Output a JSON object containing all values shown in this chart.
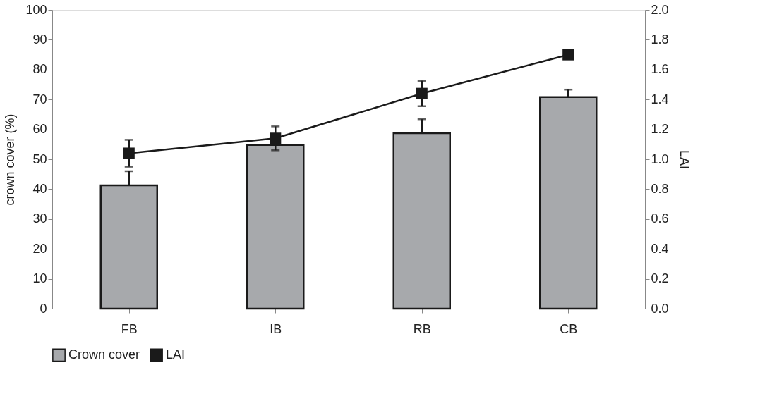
{
  "chart_data": {
    "type": "bar",
    "ylabel": "crown cover (%)",
    "y2label": "LAI",
    "categories": [
      "FB",
      "IB",
      "RB",
      "CB"
    ],
    "series": [
      {
        "name": "Crown cover",
        "color": "#a7a9ac",
        "values": [
          41.3,
          54.8,
          58.7,
          70.8
        ],
        "errors": [
          4.7,
          null,
          4.7,
          2.5
        ]
      },
      {
        "name": "LAI",
        "type": "line",
        "axis": "y2",
        "color": "#1a1a1a",
        "marker": "square",
        "values": [
          1.04,
          1.14,
          1.44,
          1.7
        ],
        "errors": [
          0.09,
          0.08,
          0.085,
          null
        ]
      }
    ],
    "ylim": [
      0,
      100
    ],
    "yticks": [
      0,
      10,
      20,
      30,
      40,
      50,
      60,
      70,
      80,
      90,
      100
    ],
    "y2lim": [
      0,
      2.0
    ],
    "y2ticks": [
      {
        "value": 0,
        "label": "0.0"
      },
      {
        "value": 0.2,
        "label": "0.2"
      },
      {
        "value": 0.4,
        "label": "0.4"
      },
      {
        "value": 0.6,
        "label": "0.6"
      },
      {
        "value": 0.8,
        "label": "0.8"
      },
      {
        "value": 1.0,
        "label": "1.0"
      },
      {
        "value": 1.2,
        "label": "1.2"
      },
      {
        "value": 1.4,
        "label": "1.4"
      },
      {
        "value": 1.6,
        "label": "1.6"
      },
      {
        "value": 1.8,
        "label": "1.8"
      },
      {
        "value": 2.0,
        "label": "2.0"
      }
    ],
    "grid": false,
    "legend": "bottom"
  }
}
